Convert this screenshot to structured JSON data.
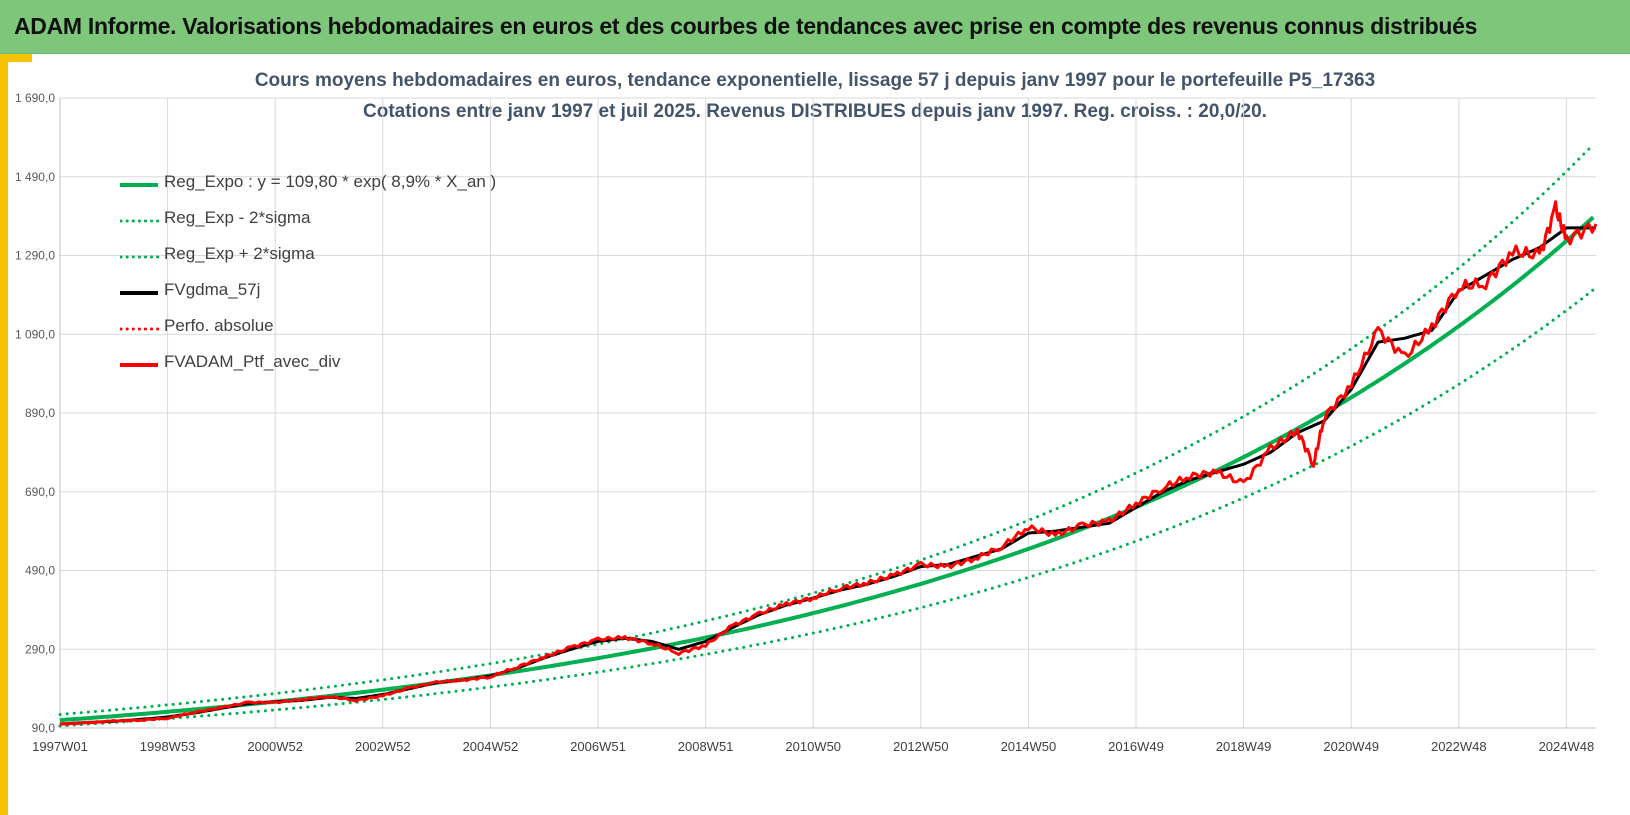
{
  "header": {
    "title": "ADAM Informe. Valorisations hebdomadaires en euros et des courbes de tendances avec prise en compte des revenus connus distribués"
  },
  "colors": {
    "header_bg": "#7dc67a",
    "frame": "#f5c400",
    "reg_green": "#00b050",
    "sigma_green": "#00b050",
    "fv_black": "#000000",
    "perfo_red": "#ff0000",
    "ptf_red": "#ff0000",
    "title_color": "#44546a",
    "grid": "#d9d9d9"
  },
  "chart_data": {
    "type": "line",
    "title": "Cours moyens hebdomadaires  en euros, tendance exponentielle, lissage 57 j depuis janv 1997 pour le portefeuille P5_17363",
    "subtitle": "Cotations entre janv 1997 et juil 2025. Revenus DISTRIBUES depuis janv 1997. Reg. croiss. : 20,0/20.",
    "xlabel": "",
    "ylabel": "",
    "ylim": [
      90,
      1690
    ],
    "x_range": [
      1997.0,
      2025.55
    ],
    "yticks": [
      "1 690,0",
      "1 490,0",
      "1 290,0",
      "1 090,0",
      "890,0",
      "690,0",
      "490,0",
      "290,0",
      "90,0"
    ],
    "ytick_values": [
      1690,
      1490,
      1290,
      1090,
      890,
      690,
      490,
      290,
      90
    ],
    "xticks": [
      "1997W01",
      "1998W53",
      "2000W52",
      "2002W52",
      "2004W52",
      "2006W51",
      "2008W51",
      "2010W50",
      "2012W50",
      "2014W50",
      "2016W49",
      "2018W49",
      "2020W49",
      "2022W48",
      "2024W48"
    ],
    "xtick_values": [
      1997.0,
      1999.0,
      2001.0,
      2003.0,
      2005.0,
      2007.0,
      2009.0,
      2011.0,
      2013.0,
      2015.0,
      2017.0,
      2019.0,
      2021.0,
      2023.0,
      2025.0
    ],
    "grid": true,
    "legend_position": "top-left",
    "regression": {
      "a": 109.8,
      "rate": 0.089,
      "sigma_factor": 0.133
    },
    "series": [
      {
        "name": "Reg_Expo : y = 109,80 * exp( 8,9% *  X_an )",
        "style": "solid",
        "color": "#00b050"
      },
      {
        "name": "Reg_Exp - 2*sigma",
        "style": "dotted",
        "color": "#00b050"
      },
      {
        "name": "Reg_Exp + 2*sigma",
        "style": "dotted",
        "color": "#00b050"
      },
      {
        "name": "FVgdma_57j",
        "style": "solid",
        "color": "#000000",
        "x": [
          1997.0,
          1997.5,
          1998.0,
          1998.5,
          1999.0,
          1999.5,
          2000.0,
          2000.5,
          2001.0,
          2001.5,
          2002.0,
          2002.5,
          2003.0,
          2003.5,
          2004.0,
          2004.5,
          2005.0,
          2005.5,
          2006.0,
          2006.5,
          2007.0,
          2007.5,
          2008.0,
          2008.5,
          2009.0,
          2009.5,
          2010.0,
          2010.5,
          2011.0,
          2011.5,
          2012.0,
          2012.5,
          2013.0,
          2013.5,
          2014.0,
          2014.5,
          2015.0,
          2015.5,
          2016.0,
          2016.5,
          2017.0,
          2017.5,
          2018.0,
          2018.5,
          2019.0,
          2019.5,
          2020.0,
          2020.5,
          2021.0,
          2021.5,
          2022.0,
          2022.5,
          2023.0,
          2023.5,
          2024.0,
          2024.5,
          2025.0,
          2025.55
        ],
        "y": [
          100,
          104,
          107,
          112,
          118,
          128,
          140,
          152,
          157,
          160,
          168,
          165,
          175,
          190,
          205,
          212,
          222,
          242,
          268,
          290,
          310,
          318,
          310,
          290,
          310,
          345,
          378,
          402,
          420,
          440,
          455,
          475,
          500,
          505,
          525,
          545,
          585,
          590,
          600,
          610,
          650,
          690,
          720,
          740,
          760,
          790,
          840,
          870,
          950,
          1070,
          1080,
          1100,
          1200,
          1240,
          1280,
          1310,
          1360,
          1360
        ]
      },
      {
        "name": "Perfo. absolue",
        "style": "dotted",
        "color": "#ff0000"
      },
      {
        "name": "FVADAM_Ptf_avec_div",
        "style": "solid",
        "color": "#ff0000",
        "x": [
          1997.0,
          1997.5,
          1998.0,
          1998.5,
          1999.0,
          1999.5,
          2000.0,
          2000.5,
          2001.0,
          2001.5,
          2002.0,
          2002.5,
          2003.0,
          2003.5,
          2004.0,
          2004.5,
          2005.0,
          2005.5,
          2006.0,
          2006.5,
          2007.0,
          2007.5,
          2008.0,
          2008.5,
          2009.0,
          2009.5,
          2010.0,
          2010.5,
          2011.0,
          2011.5,
          2012.0,
          2012.5,
          2013.0,
          2013.5,
          2014.0,
          2014.5,
          2015.0,
          2015.5,
          2016.0,
          2016.5,
          2017.0,
          2017.5,
          2018.0,
          2018.5,
          2019.0,
          2019.5,
          2020.0,
          2020.3,
          2020.5,
          2021.0,
          2021.5,
          2022.0,
          2022.5,
          2023.0,
          2023.5,
          2024.0,
          2024.5,
          2024.8,
          2025.0,
          2025.55
        ],
        "y": [
          100,
          103,
          108,
          110,
          115,
          130,
          142,
          155,
          155,
          162,
          170,
          160,
          172,
          192,
          206,
          212,
          220,
          245,
          270,
          295,
          315,
          320,
          305,
          280,
          300,
          350,
          380,
          405,
          420,
          445,
          458,
          478,
          505,
          500,
          520,
          550,
          600,
          580,
          605,
          615,
          660,
          700,
          730,
          740,
          710,
          800,
          845,
          760,
          880,
          960,
          1100,
          1030,
          1110,
          1210,
          1220,
          1300,
          1290,
          1410,
          1330,
          1370
        ]
      }
    ]
  }
}
